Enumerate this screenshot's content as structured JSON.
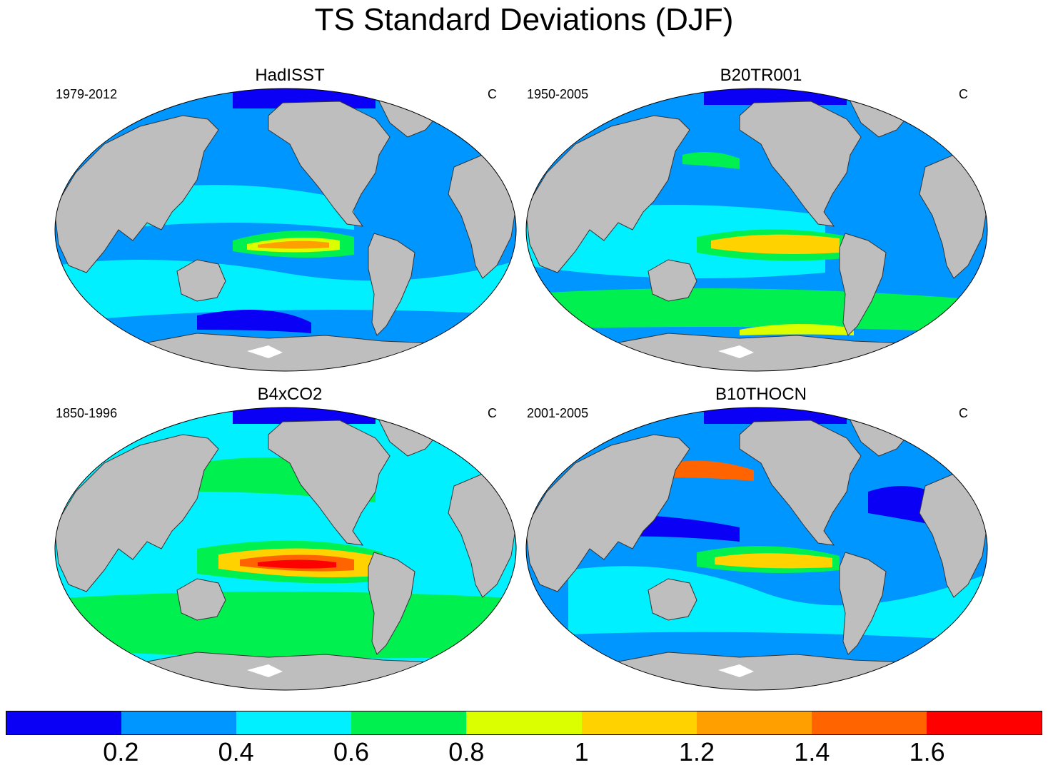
{
  "title": "TS Standard Deviations (DJF)",
  "panels": [
    {
      "name": "HadISST",
      "period": "1979-2012",
      "units": "C"
    },
    {
      "name": "B20TR001",
      "period": "1950-2005",
      "units": "C"
    },
    {
      "name": "B4xCO2",
      "period": "1850-1996",
      "units": "C"
    },
    {
      "name": "B10THOCN",
      "period": "2001-2005",
      "units": "C"
    }
  ],
  "colorbar": {
    "labels": [
      "0.2",
      "0.4",
      "0.6",
      "0.8",
      "1",
      "1.2",
      "1.4",
      "1.6"
    ],
    "colors": [
      "#0a00f5",
      "#0096ff",
      "#00f0ff",
      "#00f050",
      "#dcff00",
      "#ffd200",
      "#ffa000",
      "#ff6400",
      "#ff0000"
    ]
  },
  "colors": {
    "land": "#bebebe",
    "coast": "#333333",
    "missing": "#ffffff"
  }
}
